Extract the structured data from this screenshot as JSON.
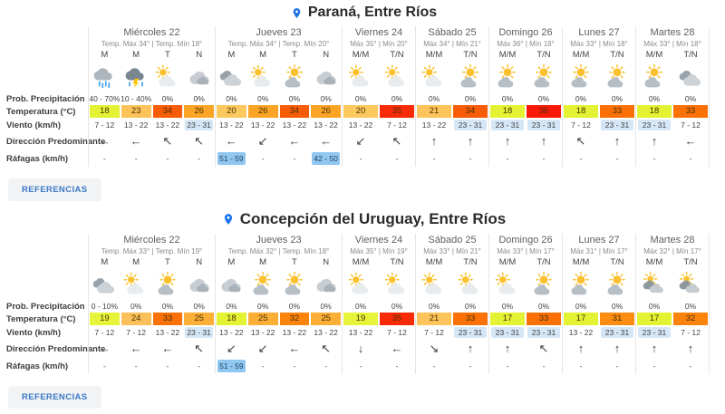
{
  "references_label": "REFERENCIAS",
  "row_labels": [
    "Prob. Precipitación",
    "Temperatura (°C)",
    "Viento (km/h)",
    "Dirección Predominante",
    "Ráfagas (km/h)"
  ],
  "colors": {
    "accent_blue": "#1a73e8",
    "wind_highlight": "#d5e6f6",
    "gust_highlight": "#8fc7f1",
    "button_bg": "#f1f3f4",
    "button_text": "#3b78c8",
    "divider": "#e6e6e6"
  },
  "temp_colors": {
    "17": "#e3f334",
    "18": "#e3f334",
    "19": "#e6f43a",
    "20": "#fcc95e",
    "21": "#fcc45a",
    "23": "#fcc35a",
    "24": "#fcc05a",
    "25": "#fcaf37",
    "26": "#fba426",
    "31": "#fc8c12",
    "32": "#fc830c",
    "33": "#fb7105",
    "34": "#f95c06",
    "35": "#f92b06",
    "36": "#f91906"
  },
  "locations": [
    {
      "title": "Paraná, Entre Ríos",
      "days": [
        {
          "name": "Miércoles 22",
          "temps": "Temp. Máx 34° | Temp. Mín 18°",
          "periods": [
            "M",
            "M",
            "T",
            "N"
          ],
          "icons": [
            "rain",
            "storm",
            "partly-sunny",
            "overcast"
          ],
          "prob": [
            "40 - 70%",
            "10 - 40%",
            "0%",
            "0%"
          ],
          "temp": [
            18,
            23,
            34,
            26
          ],
          "wind": [
            "7 - 12",
            "13 - 22",
            "13 - 22",
            "23 - 31"
          ],
          "wind_hl": [
            false,
            false,
            false,
            true
          ],
          "dir": [
            "←",
            "←",
            "↖",
            "↖"
          ],
          "gust": [
            "-",
            "-",
            "-",
            "-"
          ],
          "gust_hl": [
            false,
            false,
            false,
            false
          ]
        },
        {
          "name": "Jueves 23",
          "temps": "Temp. Máx 34° | Temp. Mín 20°",
          "periods": [
            "M",
            "M",
            "T",
            "N"
          ],
          "icons": [
            "cloudy",
            "partly-sunny",
            "mostly-sunny",
            "overcast"
          ],
          "prob": [
            "0%",
            "0%",
            "0%",
            "0%"
          ],
          "temp": [
            20,
            26,
            34,
            26
          ],
          "wind": [
            "13 - 22",
            "13 - 22",
            "13 - 22",
            "13 - 22"
          ],
          "wind_hl": [
            false,
            false,
            false,
            false
          ],
          "dir": [
            "←",
            "↙",
            "←",
            "←"
          ],
          "gust": [
            "51 - 59",
            "-",
            "-",
            "42 - 50"
          ],
          "gust_hl": [
            true,
            false,
            false,
            true
          ]
        },
        {
          "name": "Viernes 24",
          "temps": "Máx 35° | Mín 20°",
          "periods": [
            "M/M",
            "T/N"
          ],
          "icons": [
            "partly-sunny",
            "partly-sunny"
          ],
          "prob": [
            "0%",
            "0%"
          ],
          "temp": [
            20,
            35
          ],
          "wind": [
            "13 - 22",
            "7 - 12"
          ],
          "wind_hl": [
            false,
            false
          ],
          "dir": [
            "↙",
            "↖"
          ],
          "gust": [
            "-",
            "-"
          ],
          "gust_hl": [
            false,
            false
          ]
        },
        {
          "name": "Sábado 25",
          "temps": "Máx 34° | Mín 21°",
          "periods": [
            "M/M",
            "T/N"
          ],
          "icons": [
            "partly-sunny",
            "mostly-sunny"
          ],
          "prob": [
            "0%",
            "0%"
          ],
          "temp": [
            21,
            34
          ],
          "wind": [
            "13 - 22",
            "23 - 31"
          ],
          "wind_hl": [
            false,
            true
          ],
          "dir": [
            "↑",
            "↑"
          ],
          "gust": [
            "-",
            "-"
          ],
          "gust_hl": [
            false,
            false
          ]
        },
        {
          "name": "Domingo 26",
          "temps": "Máx 36° | Mín 18°",
          "periods": [
            "M/M",
            "T/N"
          ],
          "icons": [
            "mostly-sunny",
            "mostly-sunny"
          ],
          "prob": [
            "0%",
            "0%"
          ],
          "temp": [
            18,
            36
          ],
          "wind": [
            "23 - 31",
            "23 - 31"
          ],
          "wind_hl": [
            true,
            true
          ],
          "dir": [
            "↑",
            "↑"
          ],
          "gust": [
            "-",
            "-"
          ],
          "gust_hl": [
            false,
            false
          ]
        },
        {
          "name": "Lunes 27",
          "temps": "Máx 33° | Mín 18°",
          "periods": [
            "M/M",
            "T/N"
          ],
          "icons": [
            "mostly-sunny",
            "mostly-sunny"
          ],
          "prob": [
            "0%",
            "0%"
          ],
          "temp": [
            18,
            33
          ],
          "wind": [
            "7 - 12",
            "23 - 31"
          ],
          "wind_hl": [
            false,
            true
          ],
          "dir": [
            "↖",
            "↑"
          ],
          "gust": [
            "-",
            "-"
          ],
          "gust_hl": [
            false,
            false
          ]
        },
        {
          "name": "Martes 28",
          "temps": "Máx 33° | Mín 18°",
          "periods": [
            "M/M",
            "T/N"
          ],
          "icons": [
            "mostly-sunny",
            "cloudy"
          ],
          "prob": [
            "0%",
            "0%"
          ],
          "temp": [
            18,
            33
          ],
          "wind": [
            "23 - 31",
            "7 - 12"
          ],
          "wind_hl": [
            true,
            false
          ],
          "dir": [
            "↑",
            "←"
          ],
          "gust": [
            "-",
            "-"
          ],
          "gust_hl": [
            false,
            false
          ]
        }
      ]
    },
    {
      "title": "Concepción del Uruguay, Entre Ríos",
      "days": [
        {
          "name": "Miércoles 22",
          "temps": "Temp. Máx 33° | Temp. Mín 19°",
          "periods": [
            "M",
            "M",
            "T",
            "N"
          ],
          "icons": [
            "cloudy",
            "partly-sunny",
            "mostly-sunny",
            "overcast"
          ],
          "prob": [
            "0 - 10%",
            "0%",
            "0%",
            "0%"
          ],
          "temp": [
            19,
            24,
            33,
            25
          ],
          "wind": [
            "7 - 12",
            "7 - 12",
            "13 - 22",
            "23 - 31"
          ],
          "wind_hl": [
            false,
            false,
            false,
            true
          ],
          "dir": [
            "←",
            "←",
            "←",
            "↖"
          ],
          "gust": [
            "-",
            "-",
            "-",
            "-"
          ],
          "gust_hl": [
            false,
            false,
            false,
            false
          ]
        },
        {
          "name": "Jueves 23",
          "temps": "Temp. Máx 32° | Temp. Mín 18°",
          "periods": [
            "M",
            "M",
            "T",
            "N"
          ],
          "icons": [
            "overcast",
            "mostly-sunny",
            "mostly-sunny",
            "overcast"
          ],
          "prob": [
            "0%",
            "0%",
            "0%",
            "0%"
          ],
          "temp": [
            18,
            25,
            32,
            25
          ],
          "wind": [
            "13 - 22",
            "13 - 22",
            "13 - 22",
            "13 - 22"
          ],
          "wind_hl": [
            false,
            false,
            false,
            false
          ],
          "dir": [
            "↙",
            "↙",
            "←",
            "↖"
          ],
          "gust": [
            "51 - 59",
            "-",
            "-",
            "-"
          ],
          "gust_hl": [
            true,
            false,
            false,
            false
          ]
        },
        {
          "name": "Viernes 24",
          "temps": "Máx 35° | Mín 19°",
          "periods": [
            "M/M",
            "T/N"
          ],
          "icons": [
            "partly-sunny",
            "partly-sunny"
          ],
          "prob": [
            "0%",
            "0%"
          ],
          "temp": [
            19,
            35
          ],
          "wind": [
            "13 - 22",
            "7 - 12"
          ],
          "wind_hl": [
            false,
            false
          ],
          "dir": [
            "↓",
            "←"
          ],
          "gust": [
            "-",
            "-"
          ],
          "gust_hl": [
            false,
            false
          ]
        },
        {
          "name": "Sábado 25",
          "temps": "Máx 33° | Mín 21°",
          "periods": [
            "M/M",
            "T/N"
          ],
          "icons": [
            "partly-sunny",
            "partly-sunny"
          ],
          "prob": [
            "0%",
            "0%"
          ],
          "temp": [
            21,
            33
          ],
          "wind": [
            "7 - 12",
            "23 - 31"
          ],
          "wind_hl": [
            false,
            true
          ],
          "dir": [
            "↘",
            "↑"
          ],
          "gust": [
            "-",
            "-"
          ],
          "gust_hl": [
            false,
            false
          ]
        },
        {
          "name": "Domingo 26",
          "temps": "Máx 33° | Mín 17°",
          "periods": [
            "M/M",
            "T/N"
          ],
          "icons": [
            "partly-sunny",
            "mostly-sunny"
          ],
          "prob": [
            "0%",
            "0%"
          ],
          "temp": [
            17,
            33
          ],
          "wind": [
            "23 - 31",
            "23 - 31"
          ],
          "wind_hl": [
            true,
            true
          ],
          "dir": [
            "↑",
            "↖"
          ],
          "gust": [
            "-",
            "-"
          ],
          "gust_hl": [
            false,
            false
          ]
        },
        {
          "name": "Lunes 27",
          "temps": "Máx 31° | Mín 17°",
          "periods": [
            "M/M",
            "T/N"
          ],
          "icons": [
            "mostly-sunny",
            "mostly-sunny"
          ],
          "prob": [
            "0%",
            "0%"
          ],
          "temp": [
            17,
            31
          ],
          "wind": [
            "13 - 22",
            "23 - 31"
          ],
          "wind_hl": [
            false,
            true
          ],
          "dir": [
            "↑",
            "↑"
          ],
          "gust": [
            "-",
            "-"
          ],
          "gust_hl": [
            false,
            false
          ]
        },
        {
          "name": "Martes 28",
          "temps": "Máx 32° | Mín 17°",
          "periods": [
            "M/M",
            "T/N"
          ],
          "icons": [
            "mostly-cloudy",
            "mostly-cloudy"
          ],
          "prob": [
            "0%",
            "0%"
          ],
          "temp": [
            17,
            32
          ],
          "wind": [
            "23 - 31",
            "7 - 12"
          ],
          "wind_hl": [
            true,
            false
          ],
          "dir": [
            "↑",
            "↑"
          ],
          "gust": [
            "-",
            "-"
          ],
          "gust_hl": [
            false,
            false
          ]
        }
      ]
    }
  ]
}
